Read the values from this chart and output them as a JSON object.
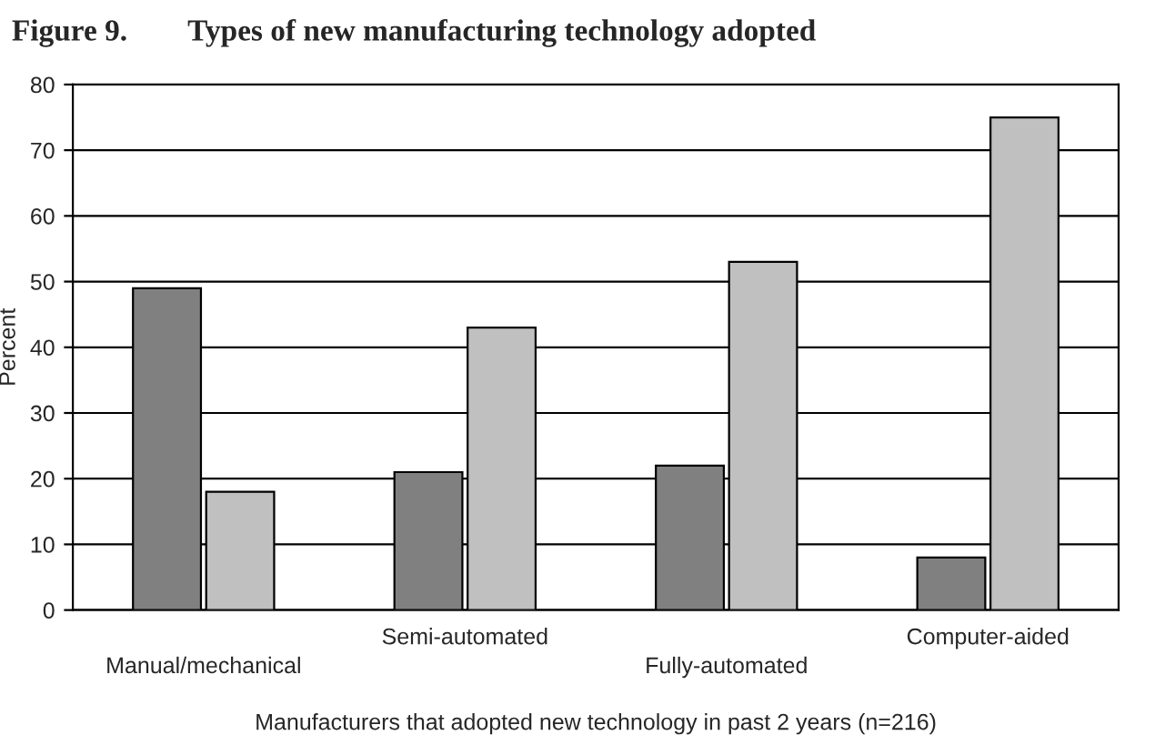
{
  "chart_data": {
    "type": "bar",
    "title": "Figure 9.        Types of new manufacturing technology adopted",
    "categories": [
      "Manual/mechanical",
      "Semi-automated",
      "Fully-automated",
      "Computer-aided"
    ],
    "series": [
      {
        "color": "#808080",
        "values": [
          49,
          21,
          22,
          8
        ]
      },
      {
        "color": "#c0c0c0",
        "values": [
          18,
          43,
          53,
          75
        ]
      }
    ],
    "xlabel": "Manufacturers that adopted new technology in past 2 years (n=216)",
    "ylabel": "Percent",
    "ylim": [
      0,
      80
    ],
    "yticks": [
      0,
      10,
      20,
      30,
      40,
      50,
      60,
      70,
      80
    ],
    "grid": "y"
  }
}
